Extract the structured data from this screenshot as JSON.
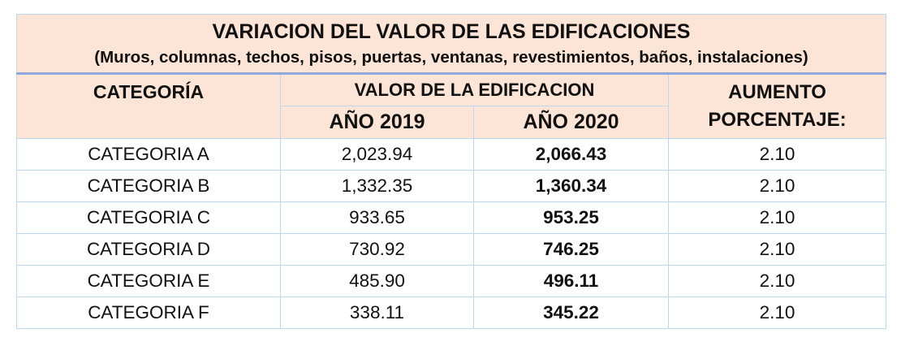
{
  "title": "VARIACION DEL VALOR DE LAS EDIFICACIONES",
  "subtitle": "(Muros, columnas, techos, pisos, puertas, ventanas, revestimientos, baños, instalaciones)",
  "headers": {
    "categoria": "CATEGORÍA",
    "valor": "VALOR DE LA EDIFICACION",
    "year_2019": "AÑO 2019",
    "year_2020": "AÑO 2020",
    "aumento_line1": "AUMENTO",
    "aumento_line2": "PORCENTAJE:"
  },
  "rows": [
    {
      "categoria": "CATEGORIA A",
      "y2019": "2,023.94",
      "y2020": "2,066.43",
      "aumento": "2.10"
    },
    {
      "categoria": "CATEGORIA B",
      "y2019": "1,332.35",
      "y2020": "1,360.34",
      "aumento": "2.10"
    },
    {
      "categoria": "CATEGORIA C",
      "y2019": "933.65",
      "y2020": "953.25",
      "aumento": "2.10"
    },
    {
      "categoria": "CATEGORIA D",
      "y2019": "730.92",
      "y2020": "746.25",
      "aumento": "2.10"
    },
    {
      "categoria": "CATEGORIA E",
      "y2019": "485.90",
      "y2020": "496.11",
      "aumento": "2.10"
    },
    {
      "categoria": "CATEGORIA F",
      "y2019": "338.11",
      "y2020": "345.22",
      "aumento": "2.10"
    }
  ]
}
